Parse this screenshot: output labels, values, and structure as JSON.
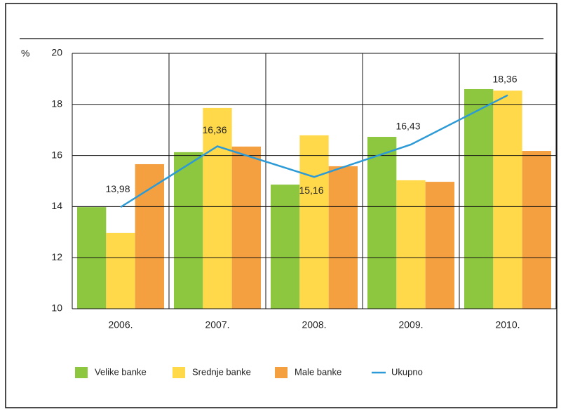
{
  "chart_data": {
    "type": "bar",
    "y_label": "%",
    "categories": [
      "2006.",
      "2007.",
      "2008.",
      "2009.",
      "2010."
    ],
    "series": [
      {
        "name": "Velike banke",
        "color": "#8dc63f",
        "values": [
          13.98,
          16.13,
          14.86,
          16.73,
          18.6
        ]
      },
      {
        "name": "Srednje banke",
        "color": "#ffd94a",
        "values": [
          12.97,
          17.86,
          16.79,
          15.03,
          18.54
        ]
      },
      {
        "name": "Male banke",
        "color": "#f5a040",
        "values": [
          15.66,
          16.35,
          15.58,
          14.97,
          16.18
        ]
      },
      {
        "name": "Ukupno",
        "type": "line",
        "color": "#2b9ad6",
        "values": [
          13.98,
          16.36,
          15.16,
          16.43,
          18.36
        ],
        "value_labels": [
          "13,98",
          "16,36",
          "15,16",
          "16,43",
          "18,36"
        ]
      }
    ],
    "ylim": [
      10,
      20
    ],
    "yticks": [
      10,
      12,
      14,
      16,
      18,
      20
    ],
    "grid": true,
    "legend": "bottom"
  }
}
